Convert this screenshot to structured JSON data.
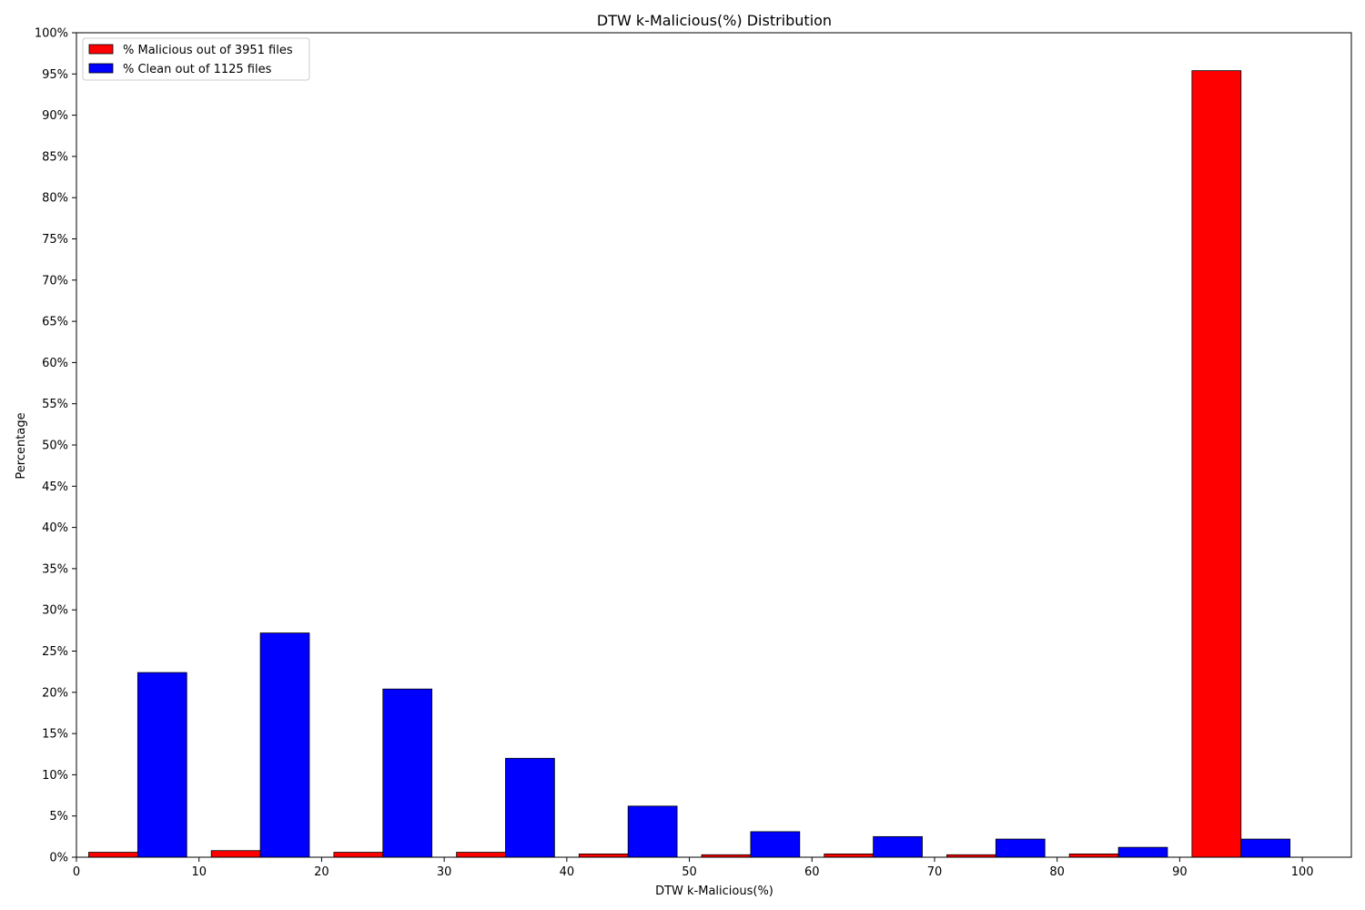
{
  "chart_data": {
    "type": "bar",
    "title": "DTW k-Malicious(%) Distribution",
    "xlabel": "DTW k-Malicious(%)",
    "ylabel": "Percentage",
    "xlim": [
      0,
      104
    ],
    "ylim": [
      0,
      100
    ],
    "x_ticks": [
      0,
      10,
      20,
      30,
      40,
      50,
      60,
      70,
      80,
      90,
      100
    ],
    "y_ticks": [
      0,
      5,
      10,
      15,
      20,
      25,
      30,
      35,
      40,
      45,
      50,
      55,
      60,
      65,
      70,
      75,
      80,
      85,
      90,
      95,
      100
    ],
    "y_tick_suffix": "%",
    "legend_position": "top-left",
    "bins": [
      [
        1,
        9
      ],
      [
        11,
        19
      ],
      [
        21,
        29
      ],
      [
        31,
        39
      ],
      [
        41,
        49
      ],
      [
        51,
        59
      ],
      [
        61,
        69
      ],
      [
        71,
        79
      ],
      [
        81,
        89
      ],
      [
        91,
        99
      ]
    ],
    "series": [
      {
        "name": "% Malicious out of 3951 files",
        "color": "#ff0000",
        "values": [
          0.6,
          0.8,
          0.6,
          0.6,
          0.4,
          0.3,
          0.4,
          0.3,
          0.4,
          95.4
        ]
      },
      {
        "name": "% Clean out of 1125 files",
        "color": "#0000ff",
        "values": [
          22.4,
          27.2,
          20.4,
          12.0,
          6.2,
          3.1,
          2.5,
          2.2,
          1.2,
          2.2
        ]
      }
    ]
  }
}
